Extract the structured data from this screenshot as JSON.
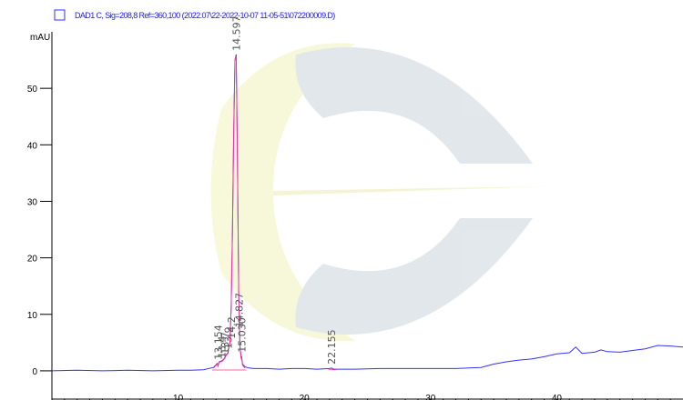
{
  "chart_data": {
    "type": "line",
    "legend": {
      "label": "DAD1 C, Sig=208,8 Ref=360,100 (2022.07\\22-2022-10-07 11-05-51\\072200009.D)",
      "color": "#3030ff",
      "placement": "top-left"
    },
    "ylabel": "mAU",
    "xlim": [
      0,
      50
    ],
    "ylim": [
      -5,
      60
    ],
    "x_ticks": [
      10,
      20,
      30,
      40
    ],
    "x_tick_labels": [
      "10",
      "20",
      "30",
      "40"
    ],
    "y_ticks": [
      0,
      10,
      20,
      30,
      40,
      50
    ],
    "y_tick_labels": [
      "0",
      "10",
      "20",
      "30",
      "40",
      "50"
    ],
    "grid": false,
    "series": [
      {
        "color": "#3333ff",
        "x": [
          0.0,
          2.0,
          4.0,
          6.0,
          8.0,
          10.0,
          11.0,
          12.0,
          12.8,
          13.1,
          13.15,
          13.25,
          13.5,
          13.7,
          13.8,
          13.95,
          14.1,
          14.2,
          14.3,
          14.4,
          14.5,
          14.6,
          14.7,
          14.8,
          14.9,
          15.0,
          15.03,
          15.1,
          15.3,
          15.6,
          16.0,
          17.0,
          18.0,
          19.0,
          20.0,
          21.0,
          22.0,
          22.15,
          22.3,
          23.0,
          24.0,
          26.0,
          28.0,
          30.0,
          32.0,
          33.0,
          34.0,
          35.0,
          36.0,
          37.0,
          38.0,
          39.0,
          40.0,
          41.0,
          41.5,
          42.0,
          43.0,
          43.5,
          44.0,
          45.0,
          46.0,
          47.0,
          48.0,
          49.0,
          50.0
        ],
        "y": [
          0.0,
          0.1,
          0.0,
          0.1,
          0.0,
          0.1,
          0.1,
          0.2,
          0.6,
          1.3,
          0.9,
          1.6,
          1.8,
          2.3,
          2.8,
          3.2,
          5.0,
          11.0,
          24.0,
          42.0,
          55.0,
          56.0,
          38.0,
          14.0,
          4.5,
          2.2,
          2.6,
          1.2,
          0.7,
          0.5,
          0.4,
          0.4,
          0.3,
          0.4,
          0.4,
          0.3,
          0.4,
          0.5,
          0.3,
          0.3,
          0.3,
          0.4,
          0.4,
          0.4,
          0.4,
          0.5,
          0.6,
          1.2,
          1.6,
          1.9,
          2.1,
          2.5,
          3.0,
          3.2,
          4.2,
          3.1,
          3.3,
          3.7,
          3.4,
          3.3,
          3.6,
          3.9,
          4.5,
          4.4,
          4.2
        ]
      },
      {
        "color": "#ff3399",
        "x": [
          12.8,
          13.1,
          13.15,
          13.25,
          13.5,
          13.7,
          13.8,
          13.95,
          14.1,
          14.2,
          14.3,
          14.4,
          14.5,
          14.6,
          14.7,
          14.8,
          14.9,
          15.0,
          15.03,
          15.1,
          15.3
        ],
        "y": [
          0.5,
          1.2,
          0.8,
          1.5,
          1.7,
          2.2,
          2.7,
          3.1,
          4.9,
          10.8,
          23.8,
          41.8,
          54.8,
          55.8,
          37.8,
          13.8,
          4.3,
          2.0,
          2.4,
          1.0,
          0.5
        ]
      }
    ],
    "peak_labels": [
      {
        "text": "14.597",
        "x": 14.597,
        "y": 56.0
      },
      {
        "text": "13.154",
        "x": 13.154,
        "y": 1.3
      },
      {
        "text": "13.4",
        "x": 13.45,
        "y": 1.6
      },
      {
        "text": "13.7",
        "x": 13.72,
        "y": 2.3
      },
      {
        "text": "13.9",
        "x": 13.95,
        "y": 3.2
      },
      {
        "text": "14.2",
        "x": 14.2,
        "y": 5.0
      },
      {
        "text": "14.827",
        "x": 14.827,
        "y": 7.0
      },
      {
        "text": "15.030",
        "x": 15.03,
        "y": 2.6
      },
      {
        "text": "22.155",
        "x": 22.155,
        "y": 0.5
      }
    ]
  }
}
